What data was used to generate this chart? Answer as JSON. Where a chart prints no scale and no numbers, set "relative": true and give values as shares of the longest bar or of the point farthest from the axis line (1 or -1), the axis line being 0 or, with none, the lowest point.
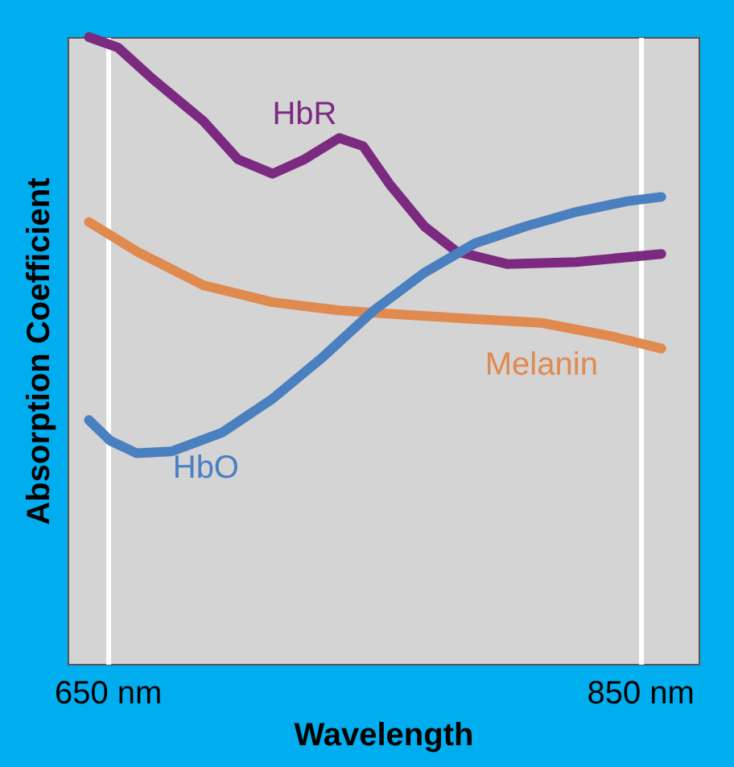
{
  "chart_data": {
    "type": "line",
    "relative": true,
    "xlabel": "Wavelength",
    "ylabel": "Absorption Coefficient",
    "xlim": [
      635,
      872
    ],
    "xticks": [
      {
        "value": 650,
        "label": "650 nm"
      },
      {
        "value": 850,
        "label": "850 nm"
      }
    ],
    "grid": "x",
    "legend": false,
    "tick_labels": "x",
    "marker": "none",
    "line_style": "solid",
    "series": [
      {
        "name": "HbR",
        "color": "#7b2a7f",
        "x": [
          643,
          654,
          667,
          686,
          699,
          712,
          724,
          737,
          746,
          756,
          769,
          781,
          800,
          826,
          858
        ],
        "values": [
          1.0,
          0.983,
          0.933,
          0.866,
          0.805,
          0.782,
          0.805,
          0.839,
          0.826,
          0.765,
          0.698,
          0.658,
          0.638,
          0.641,
          0.654
        ]
      },
      {
        "name": "Melanin",
        "color": "#e08a50",
        "x": [
          643,
          661,
          686,
          712,
          737,
          762,
          788,
          813,
          839,
          858
        ],
        "values": [
          0.705,
          0.658,
          0.604,
          0.577,
          0.564,
          0.557,
          0.55,
          0.544,
          0.523,
          0.503
        ]
      },
      {
        "name": "HbO",
        "color": "#4a7fc0",
        "x": [
          643,
          651,
          661,
          674,
          693,
          712,
          731,
          750,
          769,
          788,
          807,
          826,
          845,
          858
        ],
        "values": [
          0.389,
          0.356,
          0.336,
          0.339,
          0.369,
          0.423,
          0.49,
          0.564,
          0.624,
          0.671,
          0.698,
          0.721,
          0.738,
          0.745
        ]
      }
    ]
  }
}
